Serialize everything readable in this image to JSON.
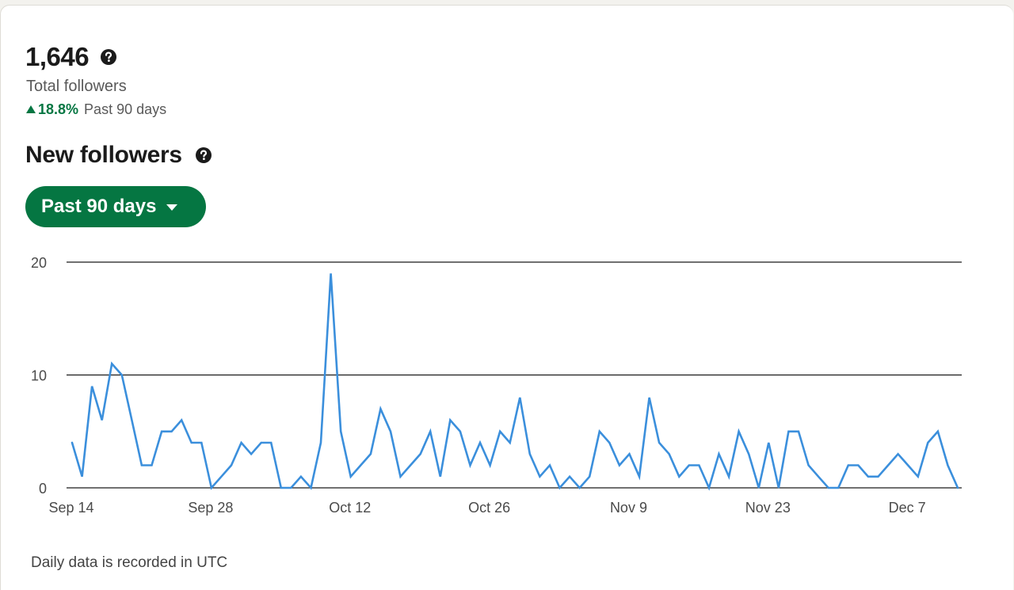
{
  "summary": {
    "total_value": "1,646",
    "total_label": "Total followers",
    "growth_value": "18.8%",
    "growth_period": "Past 90 days"
  },
  "section": {
    "title": "New followers"
  },
  "filter": {
    "selected": "Past 90 days"
  },
  "footnote": "Daily data is recorded in UTC",
  "colors": {
    "accent": "#057642",
    "line": "#3b8fdc",
    "gridline": "#1b1b1b"
  },
  "icons": {
    "help": "question-circle-icon",
    "growth": "triangle-up-icon",
    "dropdown": "caret-down-icon"
  },
  "chart_data": {
    "type": "line",
    "title": "New followers",
    "xlabel": "",
    "ylabel": "",
    "x_ticks": [
      "Sep 14",
      "Sep 28",
      "Oct 12",
      "Oct 26",
      "Nov 9",
      "Nov 23",
      "Dec 7"
    ],
    "y_ticks": [
      0,
      10,
      20
    ],
    "ylim": [
      0,
      20
    ],
    "x_range": [
      "Sep 14",
      "Dec 12"
    ],
    "grid": "horizontal",
    "legend": "none",
    "series": [
      {
        "values": [
          4,
          1,
          9,
          6,
          11,
          10,
          6,
          2,
          2,
          5,
          5,
          6,
          4,
          4,
          0,
          1,
          2,
          4,
          3,
          4,
          4,
          0,
          0,
          1,
          0,
          4,
          19,
          5,
          1,
          2,
          3,
          7,
          5,
          1,
          2,
          3,
          5,
          1,
          6,
          5,
          2,
          4,
          2,
          5,
          4,
          8,
          3,
          1,
          2,
          0,
          1,
          0,
          1,
          5,
          4,
          2,
          3,
          1,
          8,
          4,
          3,
          1,
          2,
          2,
          0,
          3,
          1,
          5,
          3,
          0,
          4,
          0,
          5,
          5,
          2,
          1,
          0,
          0,
          2,
          2,
          1,
          1,
          2,
          3,
          2,
          1,
          4,
          5,
          2,
          0
        ]
      }
    ]
  }
}
